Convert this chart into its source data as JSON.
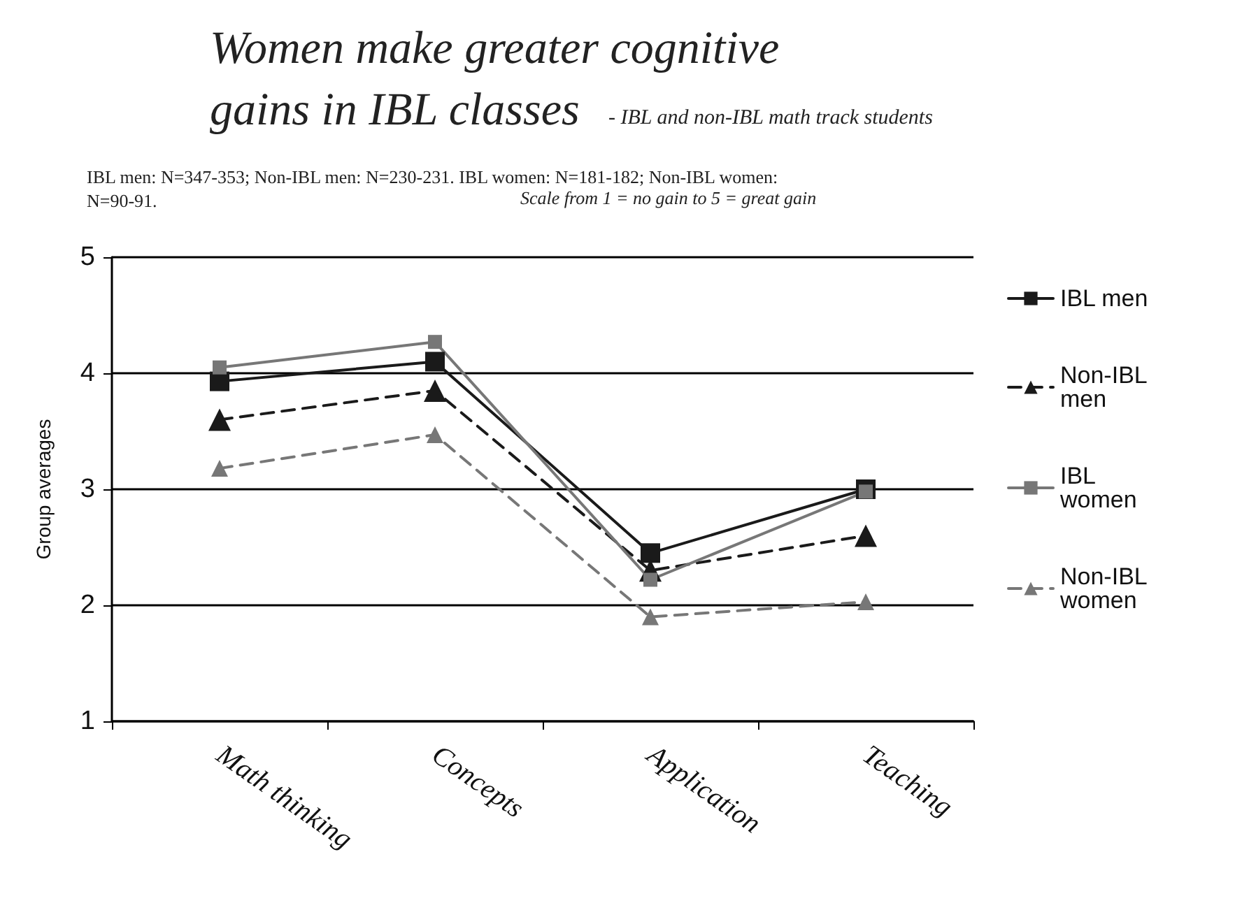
{
  "chart_data": {
    "type": "line",
    "title": "Women make greater cognitive gains in IBL classes",
    "subtitle": "- IBL and non-IBL math track students",
    "annotations": [
      "IBL men: N=347-353; Non-IBL men: N=230-231. IBL women: N=181-182; Non-IBL women: N=90-91.",
      "Scale from 1 = no gain to 5 = great gain"
    ],
    "ylabel": "Group averages",
    "categories": [
      "Math thinking",
      "Concepts",
      "Application",
      "Teaching"
    ],
    "series": [
      {
        "name": "IBL men",
        "color": "#1a1a1a",
        "values": [
          3.93,
          4.1,
          2.45,
          3.0
        ],
        "marker": "square",
        "line_style": "solid"
      },
      {
        "name": "Non-IBL men",
        "color": "#1a1a1a",
        "values": [
          3.6,
          3.85,
          2.3,
          2.6
        ],
        "marker": "triangle",
        "line_style": "dashed"
      },
      {
        "name": "IBL women",
        "color": "#777777",
        "values": [
          4.05,
          4.27,
          2.22,
          2.98
        ],
        "marker": "square",
        "line_style": "solid"
      },
      {
        "name": "Non-IBL women",
        "color": "#777777",
        "values": [
          3.18,
          3.47,
          1.9,
          2.03
        ],
        "marker": "triangle",
        "line_style": "dashed"
      }
    ],
    "ylim": [
      1,
      5
    ],
    "yticks": [
      1,
      2,
      3,
      4,
      5
    ],
    "grid": "y",
    "legend": "right"
  }
}
